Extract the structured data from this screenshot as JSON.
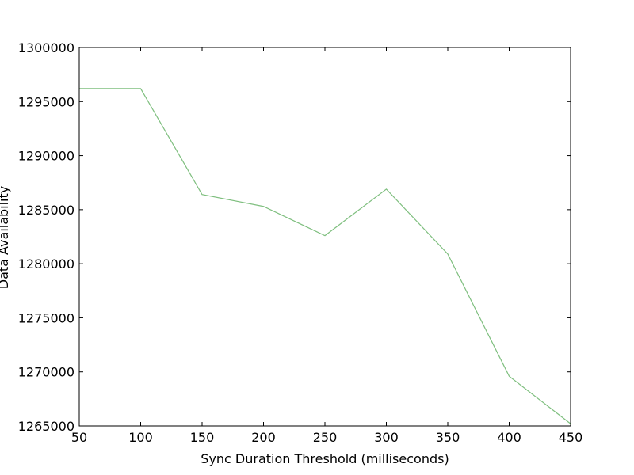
{
  "chart_data": {
    "type": "line",
    "title": "",
    "xlabel": "Sync Duration Threshold (milliseconds)",
    "ylabel": "Data Availability",
    "xlim": [
      50,
      450
    ],
    "ylim": [
      1265000,
      1300000
    ],
    "xticks": [
      50,
      100,
      150,
      200,
      250,
      300,
      350,
      400,
      450
    ],
    "yticks": [
      1265000,
      1270000,
      1275000,
      1280000,
      1285000,
      1290000,
      1295000,
      1300000
    ],
    "grid": false,
    "series": [
      {
        "color": "#7fbf7f",
        "x": [
          50,
          100,
          150,
          200,
          250,
          300,
          350,
          400,
          450
        ],
        "y": [
          1296200,
          1296200,
          1286400,
          1285300,
          1282600,
          1286900,
          1280900,
          1269600,
          1265200
        ]
      }
    ]
  }
}
